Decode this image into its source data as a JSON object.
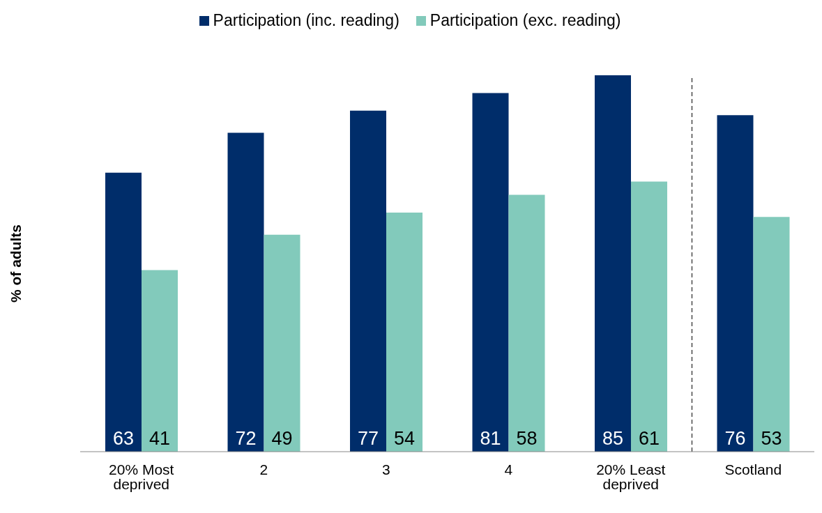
{
  "chart_data": {
    "type": "bar",
    "ylabel": "% of adults",
    "categories": [
      "20% Most deprived",
      "2",
      "3",
      "4",
      "20% Least deprived",
      "Scotland"
    ],
    "series": [
      {
        "name": "Participation (inc. reading)",
        "color": "#002d6a",
        "values": [
          63,
          72,
          77,
          81,
          85,
          76
        ]
      },
      {
        "name": "Participation (exc. reading)",
        "color": "#82cabb",
        "values": [
          41,
          49,
          54,
          58,
          61,
          53
        ]
      }
    ],
    "data_labels": true,
    "legend": "top",
    "grid": false
  }
}
